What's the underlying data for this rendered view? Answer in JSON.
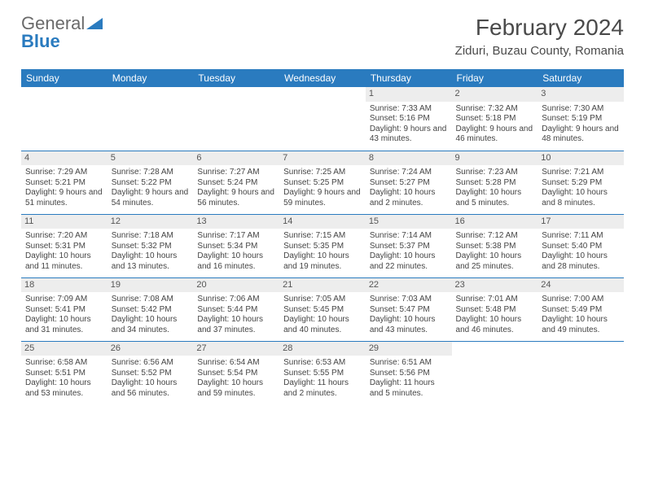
{
  "branding": {
    "general": "General",
    "blue": "Blue"
  },
  "title": "February 2024",
  "location": "Ziduri, Buzau County, Romania",
  "colors": {
    "accent": "#2a7bbf",
    "band": "#ededed",
    "text": "#444444",
    "bg": "#ffffff"
  },
  "weekdays": [
    "Sunday",
    "Monday",
    "Tuesday",
    "Wednesday",
    "Thursday",
    "Friday",
    "Saturday"
  ],
  "weeks": [
    [
      {
        "n": "",
        "sr": "",
        "ss": "",
        "dl": ""
      },
      {
        "n": "",
        "sr": "",
        "ss": "",
        "dl": ""
      },
      {
        "n": "",
        "sr": "",
        "ss": "",
        "dl": ""
      },
      {
        "n": "",
        "sr": "",
        "ss": "",
        "dl": ""
      },
      {
        "n": "1",
        "sr": "Sunrise: 7:33 AM",
        "ss": "Sunset: 5:16 PM",
        "dl": "Daylight: 9 hours and 43 minutes."
      },
      {
        "n": "2",
        "sr": "Sunrise: 7:32 AM",
        "ss": "Sunset: 5:18 PM",
        "dl": "Daylight: 9 hours and 46 minutes."
      },
      {
        "n": "3",
        "sr": "Sunrise: 7:30 AM",
        "ss": "Sunset: 5:19 PM",
        "dl": "Daylight: 9 hours and 48 minutes."
      }
    ],
    [
      {
        "n": "4",
        "sr": "Sunrise: 7:29 AM",
        "ss": "Sunset: 5:21 PM",
        "dl": "Daylight: 9 hours and 51 minutes."
      },
      {
        "n": "5",
        "sr": "Sunrise: 7:28 AM",
        "ss": "Sunset: 5:22 PM",
        "dl": "Daylight: 9 hours and 54 minutes."
      },
      {
        "n": "6",
        "sr": "Sunrise: 7:27 AM",
        "ss": "Sunset: 5:24 PM",
        "dl": "Daylight: 9 hours and 56 minutes."
      },
      {
        "n": "7",
        "sr": "Sunrise: 7:25 AM",
        "ss": "Sunset: 5:25 PM",
        "dl": "Daylight: 9 hours and 59 minutes."
      },
      {
        "n": "8",
        "sr": "Sunrise: 7:24 AM",
        "ss": "Sunset: 5:27 PM",
        "dl": "Daylight: 10 hours and 2 minutes."
      },
      {
        "n": "9",
        "sr": "Sunrise: 7:23 AM",
        "ss": "Sunset: 5:28 PM",
        "dl": "Daylight: 10 hours and 5 minutes."
      },
      {
        "n": "10",
        "sr": "Sunrise: 7:21 AM",
        "ss": "Sunset: 5:29 PM",
        "dl": "Daylight: 10 hours and 8 minutes."
      }
    ],
    [
      {
        "n": "11",
        "sr": "Sunrise: 7:20 AM",
        "ss": "Sunset: 5:31 PM",
        "dl": "Daylight: 10 hours and 11 minutes."
      },
      {
        "n": "12",
        "sr": "Sunrise: 7:18 AM",
        "ss": "Sunset: 5:32 PM",
        "dl": "Daylight: 10 hours and 13 minutes."
      },
      {
        "n": "13",
        "sr": "Sunrise: 7:17 AM",
        "ss": "Sunset: 5:34 PM",
        "dl": "Daylight: 10 hours and 16 minutes."
      },
      {
        "n": "14",
        "sr": "Sunrise: 7:15 AM",
        "ss": "Sunset: 5:35 PM",
        "dl": "Daylight: 10 hours and 19 minutes."
      },
      {
        "n": "15",
        "sr": "Sunrise: 7:14 AM",
        "ss": "Sunset: 5:37 PM",
        "dl": "Daylight: 10 hours and 22 minutes."
      },
      {
        "n": "16",
        "sr": "Sunrise: 7:12 AM",
        "ss": "Sunset: 5:38 PM",
        "dl": "Daylight: 10 hours and 25 minutes."
      },
      {
        "n": "17",
        "sr": "Sunrise: 7:11 AM",
        "ss": "Sunset: 5:40 PM",
        "dl": "Daylight: 10 hours and 28 minutes."
      }
    ],
    [
      {
        "n": "18",
        "sr": "Sunrise: 7:09 AM",
        "ss": "Sunset: 5:41 PM",
        "dl": "Daylight: 10 hours and 31 minutes."
      },
      {
        "n": "19",
        "sr": "Sunrise: 7:08 AM",
        "ss": "Sunset: 5:42 PM",
        "dl": "Daylight: 10 hours and 34 minutes."
      },
      {
        "n": "20",
        "sr": "Sunrise: 7:06 AM",
        "ss": "Sunset: 5:44 PM",
        "dl": "Daylight: 10 hours and 37 minutes."
      },
      {
        "n": "21",
        "sr": "Sunrise: 7:05 AM",
        "ss": "Sunset: 5:45 PM",
        "dl": "Daylight: 10 hours and 40 minutes."
      },
      {
        "n": "22",
        "sr": "Sunrise: 7:03 AM",
        "ss": "Sunset: 5:47 PM",
        "dl": "Daylight: 10 hours and 43 minutes."
      },
      {
        "n": "23",
        "sr": "Sunrise: 7:01 AM",
        "ss": "Sunset: 5:48 PM",
        "dl": "Daylight: 10 hours and 46 minutes."
      },
      {
        "n": "24",
        "sr": "Sunrise: 7:00 AM",
        "ss": "Sunset: 5:49 PM",
        "dl": "Daylight: 10 hours and 49 minutes."
      }
    ],
    [
      {
        "n": "25",
        "sr": "Sunrise: 6:58 AM",
        "ss": "Sunset: 5:51 PM",
        "dl": "Daylight: 10 hours and 53 minutes."
      },
      {
        "n": "26",
        "sr": "Sunrise: 6:56 AM",
        "ss": "Sunset: 5:52 PM",
        "dl": "Daylight: 10 hours and 56 minutes."
      },
      {
        "n": "27",
        "sr": "Sunrise: 6:54 AM",
        "ss": "Sunset: 5:54 PM",
        "dl": "Daylight: 10 hours and 59 minutes."
      },
      {
        "n": "28",
        "sr": "Sunrise: 6:53 AM",
        "ss": "Sunset: 5:55 PM",
        "dl": "Daylight: 11 hours and 2 minutes."
      },
      {
        "n": "29",
        "sr": "Sunrise: 6:51 AM",
        "ss": "Sunset: 5:56 PM",
        "dl": "Daylight: 11 hours and 5 minutes."
      },
      {
        "n": "",
        "sr": "",
        "ss": "",
        "dl": ""
      },
      {
        "n": "",
        "sr": "",
        "ss": "",
        "dl": ""
      }
    ]
  ]
}
